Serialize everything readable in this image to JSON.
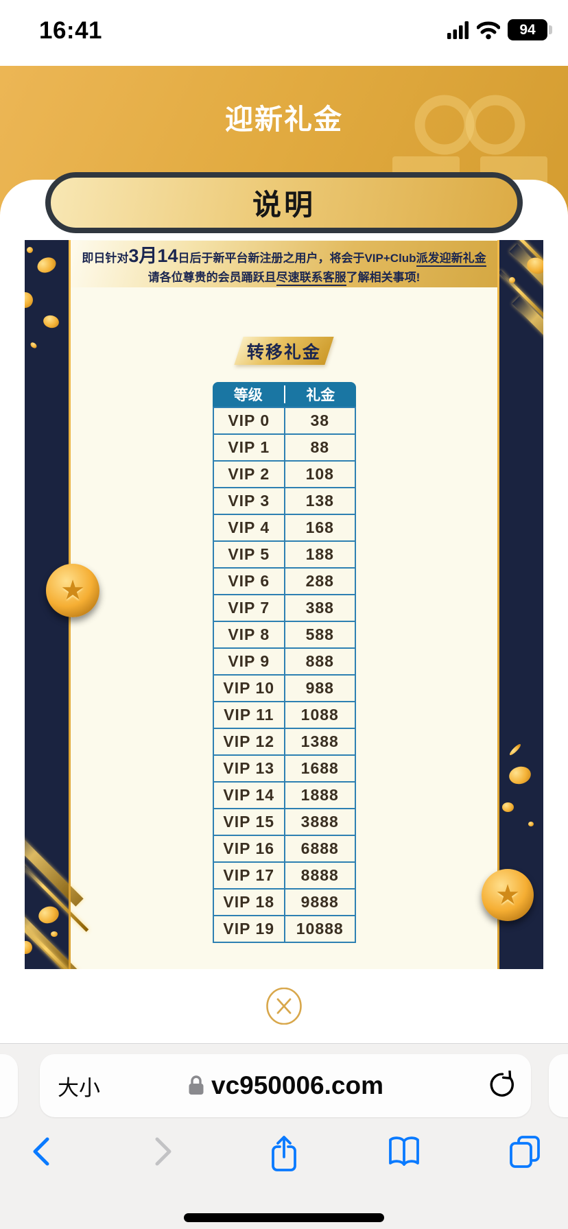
{
  "status_bar": {
    "time": "16:41",
    "battery_percent": "94"
  },
  "header": {
    "title": "迎新礼金"
  },
  "explain_button_label": "说明",
  "promo": {
    "notice": {
      "l1_pre": "即日针对",
      "l1_big": "3月14",
      "l1_mid": "日后于新平台新注册之用户，将会于VIP+Club",
      "l1_under": "派发迎新礼金",
      "l2_pre": "请各位尊贵的会员踊跃且",
      "l2_under": "尽速联系客服",
      "l2_post": "了解相关事项!"
    },
    "section_banner": "转移礼金",
    "table": {
      "col_headers": [
        "等级",
        "礼金"
      ],
      "rows": [
        [
          "VIP 0",
          "38"
        ],
        [
          "VIP 1",
          "88"
        ],
        [
          "VIP 2",
          "108"
        ],
        [
          "VIP 3",
          "138"
        ],
        [
          "VIP 4",
          "168"
        ],
        [
          "VIP 5",
          "188"
        ],
        [
          "VIP 6",
          "288"
        ],
        [
          "VIP 7",
          "388"
        ],
        [
          "VIP 8",
          "588"
        ],
        [
          "VIP 9",
          "888"
        ],
        [
          "VIP 10",
          "988"
        ],
        [
          "VIP 11",
          "1088"
        ],
        [
          "VIP 12",
          "1388"
        ],
        [
          "VIP 13",
          "1688"
        ],
        [
          "VIP 14",
          "1888"
        ],
        [
          "VIP 15",
          "3888"
        ],
        [
          "VIP 16",
          "6888"
        ],
        [
          "VIP 17",
          "8888"
        ],
        [
          "VIP 18",
          "9888"
        ],
        [
          "VIP 19",
          "10888"
        ]
      ]
    }
  },
  "browser": {
    "page_zoom_label": "大小",
    "domain": "vc950006.com"
  },
  "icons": {
    "status": [
      "cellular-signal-icon",
      "wifi-icon",
      "battery-icon"
    ],
    "header": "gift-icon",
    "close": "close-circle-icon",
    "url_bar": [
      "lock-icon",
      "reload-icon"
    ],
    "toolbar": [
      "back-icon",
      "forward-icon",
      "share-icon",
      "bookmarks-icon",
      "tabs-icon"
    ]
  },
  "colors": {
    "header_gold": "#E2AB41",
    "button_border": "#30373F",
    "navy": "#1A2340",
    "cream": "#FCFAEC",
    "table_header_blue": "#1A76A3",
    "table_border_blue": "#2D80B2",
    "notice_text_navy": "#1B2650",
    "close_gold": "#D8A74B",
    "safari_blue": "#0A7AFF",
    "forward_disabled_gray": "#C2C2C4"
  }
}
